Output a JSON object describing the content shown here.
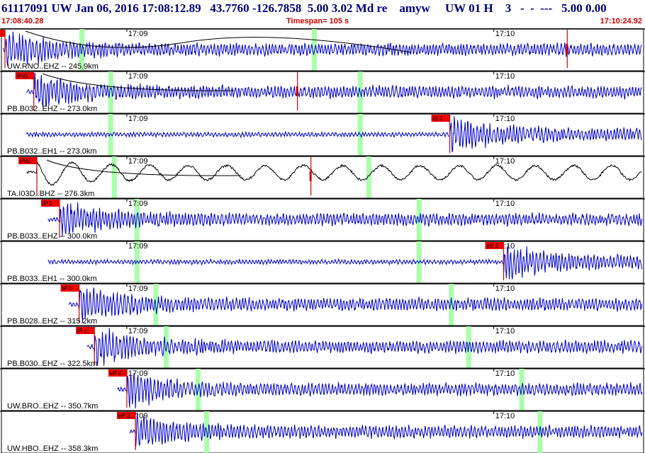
{
  "header": {
    "title": "61117091 UW Jan 06, 2016 17:08:12.89   43.7760 -126.7858  5.00 3.02 Md re    amyw     UW 01 H    3   -  -  ---   5.00 0.00",
    "start_time": "17:08:40.28",
    "timespan": "Timespan= 105 s",
    "end_time": "17:10:24.92"
  },
  "colors": {
    "title": "#000080",
    "time_text": "#cc0000",
    "trace_blue": "#0000cc",
    "trace_black": "#000000",
    "pick_box": "#ee0000",
    "pick_line": "#cc0000",
    "marker": "#aaffaa",
    "border": "#000000"
  },
  "tick_labels": [
    "17:09",
    "17:10"
  ],
  "traces": [
    {
      "label": "UW.RNO..EHZ -- 245.9km",
      "color": "blue",
      "picks": [
        {
          "label": "iPd1",
          "t": 0.58
        },
        {
          "label": "",
          "t": 92.5
        }
      ],
      "markers": [
        13.1,
        51.1
      ],
      "start": 0.28,
      "end": 120.0
    },
    {
      "label": "PB.B032..EHZ -- 273.0km",
      "color": "blue",
      "picks": [
        {
          "label": "iPd1",
          "t": 5.3
        },
        {
          "label": "",
          "t": 48.4
        }
      ],
      "markers": [
        17.8,
        58.6
      ],
      "start": 4.1,
      "end": 121.0
    },
    {
      "label": "PB.B032..EH1 -- 273.0km",
      "color": "blue",
      "picks": [
        {
          "label": "iS 1",
          "t": 73.3
        }
      ],
      "markers": [
        17.8,
        58.6
      ],
      "start": 4.1,
      "end": 121.0
    },
    {
      "label": "TA.I03D..BHZ -- 276.3km",
      "color": "black",
      "picks": [
        {
          "label": "iPd1",
          "t": 5.8
        },
        {
          "label": "",
          "t": 50.6
        }
      ],
      "markers": [
        18.4,
        60.0
      ],
      "start": 4.1,
      "end": 122.4
    },
    {
      "label": "PB.B033..EHZ -- 300.0km",
      "color": "blue",
      "picks": [
        {
          "label": "iP 1",
          "t": 9.5
        }
      ],
      "markers": [
        22.1,
        68.2
      ],
      "start": 7.6,
      "end": 126.3
    },
    {
      "label": "PB.B033..EH1 -- 300.0km",
      "color": "blue",
      "picks": [
        {
          "label": "eS 2",
          "t": 82.1
        }
      ],
      "markers": [
        22.1,
        68.2
      ],
      "start": 7.6,
      "end": 126.3
    },
    {
      "label": "PB.B028..EHZ -- 315.2km",
      "color": "blue",
      "picks": [
        {
          "label": "iP 1",
          "t": 12.7
        }
      ],
      "markers": [
        25.2,
        73.5
      ],
      "start": 11.0,
      "end": 129.5
    },
    {
      "label": "PB.B030..EHZ -- 322.5km",
      "color": "blue",
      "picks": [
        {
          "label": "iP 1",
          "t": 15.2
        }
      ],
      "markers": [
        26.9,
        76.3
      ],
      "start": 14.0,
      "end": 131.0
    },
    {
      "label": "UW.BRO..EHZ -- 350.7km",
      "color": "blue",
      "picks": [
        {
          "label": "eP 2",
          "t": 20.5
        }
      ],
      "markers": [
        32.1,
        85.0
      ],
      "start": 19.0,
      "end": 133.0
    },
    {
      "label": "UW.HBO..EHZ -- 358.3km",
      "color": "blue",
      "picks": [
        {
          "label": "eP 2",
          "t": 21.9
        }
      ],
      "markers": [
        33.5,
        88.0
      ],
      "start": 21.0,
      "end": 134.0
    }
  ]
}
